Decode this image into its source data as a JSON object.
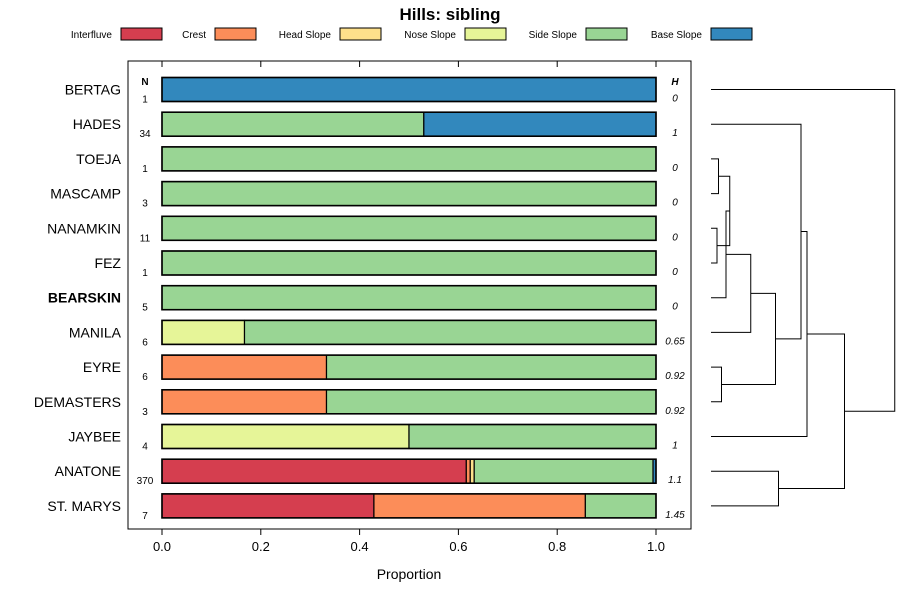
{
  "chart_data": {
    "type": "bar",
    "orientation": "horizontal-stacked",
    "title": "Hills: sibling",
    "xlabel": "Proportion",
    "xlim": [
      0,
      1
    ],
    "xticks": [
      "0.0",
      "0.2",
      "0.4",
      "0.6",
      "0.8",
      "1.0"
    ],
    "n_header": "N",
    "h_header": "H",
    "categories": [
      "Interfluve",
      "Crest",
      "Head Slope",
      "Nose Slope",
      "Side Slope",
      "Base Slope"
    ],
    "colors": {
      "Interfluve": "#d53e4f",
      "Crest": "#fc8d59",
      "Head Slope": "#fee08b",
      "Nose Slope": "#e6f598",
      "Side Slope": "#99d594",
      "Base Slope": "#3288bd"
    },
    "rows": [
      {
        "name": "BERTAG",
        "n": "1",
        "h": "0",
        "bold": false,
        "values": [
          0,
          0,
          0,
          0,
          0,
          1
        ]
      },
      {
        "name": "HADES",
        "n": "34",
        "h": "1",
        "bold": false,
        "values": [
          0,
          0,
          0,
          0,
          0.53,
          0.47
        ]
      },
      {
        "name": "TOEJA",
        "n": "1",
        "h": "0",
        "bold": false,
        "values": [
          0,
          0,
          0,
          0,
          1,
          0
        ]
      },
      {
        "name": "MASCAMP",
        "n": "3",
        "h": "0",
        "bold": false,
        "values": [
          0,
          0,
          0,
          0,
          1,
          0
        ]
      },
      {
        "name": "NANAMKIN",
        "n": "11",
        "h": "0",
        "bold": false,
        "values": [
          0,
          0,
          0,
          0,
          1,
          0
        ]
      },
      {
        "name": "FEZ",
        "n": "1",
        "h": "0",
        "bold": false,
        "values": [
          0,
          0,
          0,
          0,
          1,
          0
        ]
      },
      {
        "name": "BEARSKIN",
        "n": "5",
        "h": "0",
        "bold": true,
        "values": [
          0,
          0,
          0,
          0,
          1,
          0
        ]
      },
      {
        "name": "MANILA",
        "n": "6",
        "h": "0.65",
        "bold": false,
        "values": [
          0,
          0,
          0,
          0.167,
          0.833,
          0
        ]
      },
      {
        "name": "EYRE",
        "n": "6",
        "h": "0.92",
        "bold": false,
        "values": [
          0,
          0.333,
          0,
          0,
          0.667,
          0
        ]
      },
      {
        "name": "DEMASTERS",
        "n": "3",
        "h": "0.92",
        "bold": false,
        "values": [
          0,
          0.333,
          0,
          0,
          0.667,
          0
        ]
      },
      {
        "name": "JAYBEE",
        "n": "4",
        "h": "1",
        "bold": false,
        "values": [
          0,
          0,
          0,
          0.5,
          0.5,
          0
        ]
      },
      {
        "name": "ANATONE",
        "n": "370",
        "h": "1.1",
        "bold": false,
        "values": [
          0.616,
          0.008,
          0.008,
          0,
          0.362,
          0.006
        ]
      },
      {
        "name": "ST. MARYS",
        "n": "7",
        "h": "1.45",
        "bold": false,
        "values": [
          0.429,
          0.428,
          0,
          0,
          0.143,
          0
        ]
      }
    ],
    "dendrogram": {
      "type": "hierarchical-clustering",
      "leaf_order": [
        "BERTAG",
        "HADES",
        "TOEJA",
        "MASCAMP",
        "NANAMKIN",
        "FEZ",
        "BEARSKIN",
        "MANILA",
        "EYRE",
        "DEMASTERS",
        "JAYBEE",
        "ANATONE",
        "ST. MARYS"
      ],
      "merges": [
        [
          2,
          3,
          0.1
        ],
        [
          4,
          5,
          0.08
        ],
        [
          13,
          14,
          0.25
        ],
        [
          15,
          6,
          0.2
        ],
        [
          8,
          9,
          0.14
        ],
        [
          16,
          7,
          0.53
        ],
        [
          18,
          17,
          0.86
        ],
        [
          19,
          1,
          1.2
        ],
        [
          20,
          10,
          1.28
        ],
        [
          11,
          12,
          0.9
        ],
        [
          21,
          22,
          1.78
        ],
        [
          0,
          23,
          2.45
        ]
      ]
    }
  }
}
